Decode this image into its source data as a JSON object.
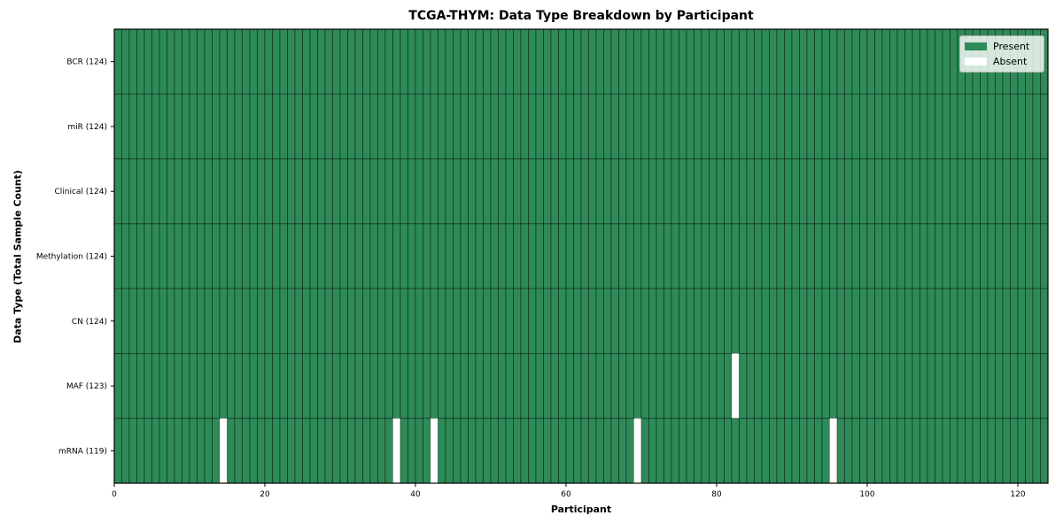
{
  "chart_data": {
    "type": "heatmap",
    "title": "TCGA-THYM: Data Type Breakdown by Participant",
    "xlabel": "Participant",
    "ylabel": "Data Type (Total Sample Count)",
    "xlim": [
      0,
      124
    ],
    "x_ticks": [
      0,
      20,
      40,
      60,
      80,
      100,
      120
    ],
    "n_participants": 124,
    "rows": [
      {
        "label": "BCR (124)",
        "data_type": "BCR",
        "present_count": 124,
        "absent_participants": []
      },
      {
        "label": "miR (124)",
        "data_type": "miR",
        "present_count": 124,
        "absent_participants": []
      },
      {
        "label": "Clinical (124)",
        "data_type": "Clinical",
        "present_count": 124,
        "absent_participants": []
      },
      {
        "label": "Methylation (124)",
        "data_type": "Methylation",
        "present_count": 124,
        "absent_participants": []
      },
      {
        "label": "CN (124)",
        "data_type": "CN",
        "present_count": 124,
        "absent_participants": []
      },
      {
        "label": "MAF (123)",
        "data_type": "MAF",
        "present_count": 123,
        "absent_participants": [
          82
        ]
      },
      {
        "label": "mRNA (119)",
        "data_type": "mRNA",
        "present_count": 119,
        "absent_participants": [
          14,
          37,
          42,
          69,
          95
        ]
      }
    ],
    "legend": [
      {
        "label": "Present",
        "color": "#2e8b57"
      },
      {
        "label": "Absent",
        "color": "#ffffff"
      }
    ],
    "legend_position": "upper right",
    "grid": false,
    "colors": {
      "present": "#2e8b57",
      "absent": "#ffffff",
      "cell_edge": "rgba(0,0,0,0.5)",
      "absent_edge": "rgba(0,0,0,0.15)",
      "frame": "#000000",
      "tick": "#000000",
      "text": "#000000"
    }
  }
}
